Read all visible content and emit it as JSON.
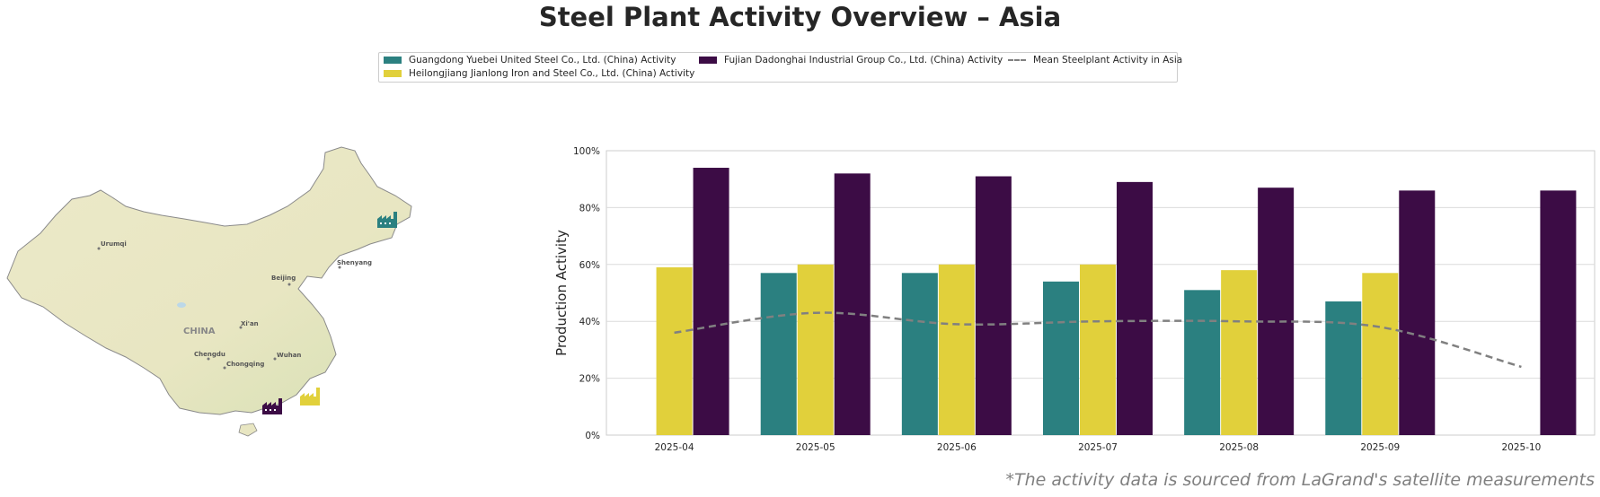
{
  "title": "Steel Plant Activity Overview – Asia",
  "legend": [
    {
      "label": "Guangdong Yuebei United Steel Co., Ltd. (China) Activity",
      "color": "#2b8080",
      "kind": "bar"
    },
    {
      "label": "Heilongjiang Jianlong Iron and Steel Co., Ltd. (China) Activity",
      "color": "#e1d03b",
      "kind": "bar"
    },
    {
      "label": "Fujian Dadonghai Industrial Group Co., Ltd. (China) Activity",
      "color": "#3c0c45",
      "kind": "bar"
    },
    {
      "label": "Mean Steelplant Activity in Asia",
      "color": "#808080",
      "kind": "dashed-line"
    }
  ],
  "map": {
    "country_label": "CHINA",
    "cities": [
      "Urumqi",
      "Beijing",
      "Shenyang",
      "Xi'an",
      "Chengdu",
      "Chongqing",
      "Wuhan"
    ],
    "marker_colors": [
      "#2b8080",
      "#3c0c45",
      "#e1d03b"
    ]
  },
  "chart_data": {
    "type": "bar",
    "categories": [
      "2025-04",
      "2025-05",
      "2025-06",
      "2025-07",
      "2025-08",
      "2025-09",
      "2025-10"
    ],
    "series": [
      {
        "name": "Guangdong Yuebei United Steel Co., Ltd. (China) Activity",
        "color": "#2b8080",
        "values": [
          null,
          57,
          57,
          54,
          51,
          47,
          null
        ]
      },
      {
        "name": "Heilongjiang Jianlong Iron and Steel Co., Ltd. (China) Activity",
        "color": "#e1d03b",
        "values": [
          59,
          60,
          60,
          60,
          58,
          57,
          null
        ]
      },
      {
        "name": "Fujian Dadonghai Industrial Group Co., Ltd. (China) Activity",
        "color": "#3c0c45",
        "values": [
          94,
          92,
          91,
          89,
          87,
          86,
          86
        ]
      }
    ],
    "line_series": {
      "name": "Mean Steelplant Activity in Asia",
      "color": "#808080",
      "style": "dashed",
      "values": [
        36,
        43,
        39,
        40,
        40,
        38,
        24
      ]
    },
    "ylabel": "Production Activity",
    "xlabel": "",
    "ylim": [
      0,
      100
    ],
    "yticks": [
      "0%",
      "20%",
      "40%",
      "60%",
      "80%",
      "100%"
    ],
    "grid": true
  },
  "source_note": "*The activity data is sourced from LaGrand's satellite measurements"
}
